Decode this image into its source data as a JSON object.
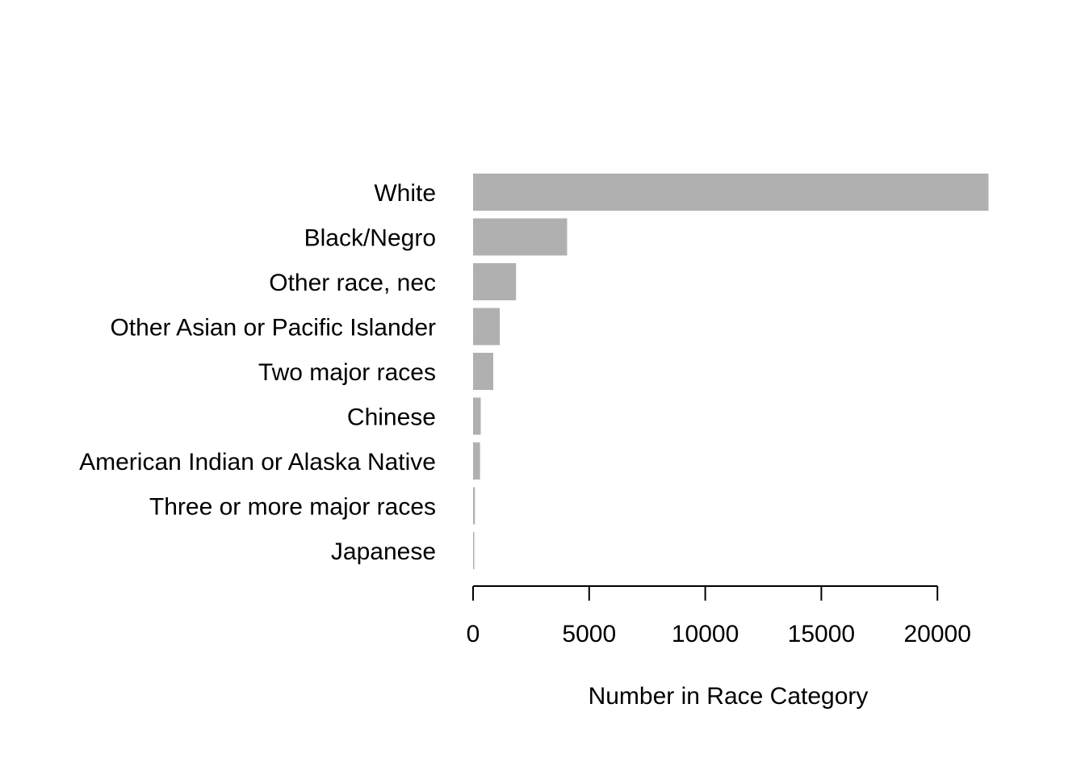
{
  "chart_data": {
    "type": "bar",
    "orientation": "horizontal",
    "title": "",
    "xlabel": "Number in Race Category",
    "ylabel": "",
    "categories": [
      "White",
      "Black/Negro",
      "Other race, nec",
      "Other Asian or Pacific Islander",
      "Two major races",
      "Chinese",
      "American Indian or Alaska Native",
      "Three or more major races",
      "Japanese"
    ],
    "values": [
      22200,
      4050,
      1850,
      1150,
      870,
      330,
      300,
      80,
      40
    ],
    "xlim": [
      0,
      22200
    ],
    "xticks": [
      0,
      5000,
      10000,
      15000,
      20000
    ],
    "xtick_labels": [
      "0",
      "5000",
      "10000",
      "15000",
      "20000"
    ],
    "bar_color": "#b0b0b0",
    "grid": false,
    "legend": "none"
  }
}
